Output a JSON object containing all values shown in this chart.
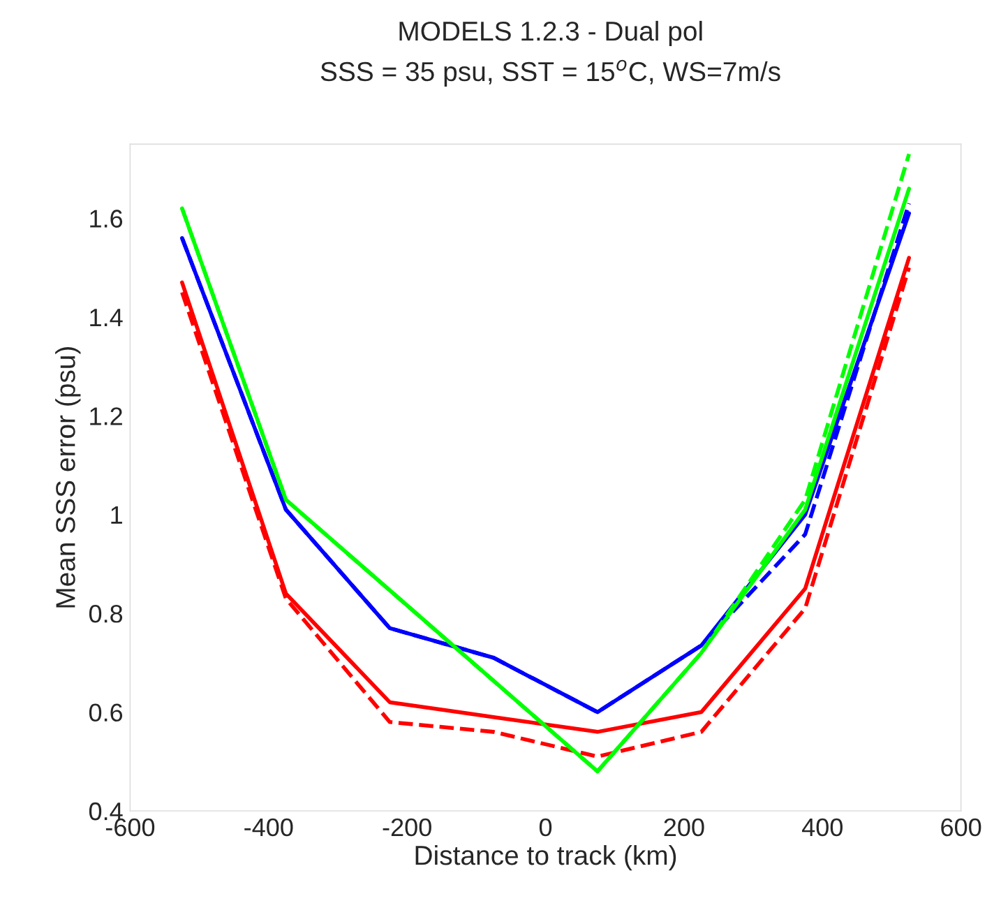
{
  "chart_data": {
    "type": "line",
    "title": "MODELS 1.2.3 - Dual pol",
    "subtitle": "SSS = 35 psu, SST = 15$^{o}$C, WS=7m/s",
    "xlabel": "Distance to track (km)",
    "ylabel": "Mean SSS error (psu)",
    "xlim": [
      -600,
      600
    ],
    "xticks": [
      -600,
      -400,
      -200,
      0,
      200,
      400,
      600
    ],
    "ylim": [
      0.4,
      1.75
    ],
    "yticks": [
      0.4,
      0.6,
      0.8,
      1,
      1.2,
      1.4,
      1.6
    ],
    "grid": false,
    "legend": false,
    "marker": "none",
    "series": [
      {
        "color": "#0000ff",
        "line_style": "solid",
        "x": [
          -525,
          -375,
          -225,
          -75,
          75,
          225,
          375,
          525
        ],
        "values": [
          1.56,
          1.01,
          0.77,
          0.71,
          0.6,
          0.735,
          1.0,
          1.61
        ]
      },
      {
        "color": "#0000ff",
        "line_style": "dashed",
        "x": [
          -525,
          -375,
          -225,
          -75,
          75,
          225,
          375,
          525
        ],
        "values": [
          1.56,
          1.01,
          0.77,
          0.71,
          0.6,
          0.735,
          0.96,
          1.63
        ]
      },
      {
        "color": "#ff0000",
        "line_style": "solid",
        "x": [
          -525,
          -375,
          -225,
          -75,
          75,
          225,
          375,
          525
        ],
        "values": [
          1.47,
          0.84,
          0.62,
          0.59,
          0.56,
          0.6,
          0.85,
          1.52
        ]
      },
      {
        "color": "#ff0000",
        "line_style": "dashed",
        "x": [
          -525,
          -375,
          -225,
          -75,
          75,
          225,
          375,
          525
        ],
        "values": [
          1.45,
          0.83,
          0.58,
          0.56,
          0.51,
          0.56,
          0.81,
          1.5
        ]
      },
      {
        "color": "#00ff00",
        "line_style": "solid",
        "x": [
          -525,
          -375,
          75,
          225,
          375,
          525
        ],
        "values": [
          1.62,
          1.03,
          0.48,
          0.72,
          1.01,
          1.66
        ]
      },
      {
        "color": "#00ff00",
        "line_style": "dashed",
        "x": [
          -525,
          -375,
          75,
          225,
          375,
          525
        ],
        "values": [
          1.62,
          1.03,
          0.48,
          0.72,
          1.03,
          1.73
        ]
      }
    ]
  }
}
